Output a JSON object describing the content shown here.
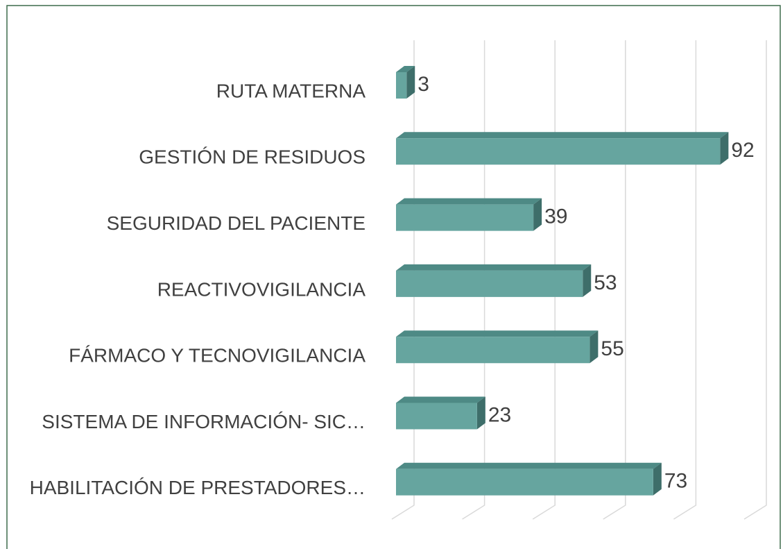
{
  "chart_data": {
    "type": "bar3d_horizontal",
    "categories": [
      "RUTA MATERNA",
      "GESTIÓN DE RESIDUOS",
      "SEGURIDAD DEL PACIENTE",
      "REACTIVOVIGILANCIA",
      "FÁRMACO Y TECNOVIGILANCIA",
      "SISTEMA DE INFORMACIÓN- SIC…",
      "HABILITACIÓN DE PRESTADORES…"
    ],
    "values": [
      3,
      92,
      39,
      53,
      55,
      23,
      73
    ],
    "color": "#66a59f",
    "xlim": [
      0,
      100
    ],
    "xticks": [
      0,
      20,
      40,
      60,
      80,
      100
    ],
    "grid": true
  }
}
